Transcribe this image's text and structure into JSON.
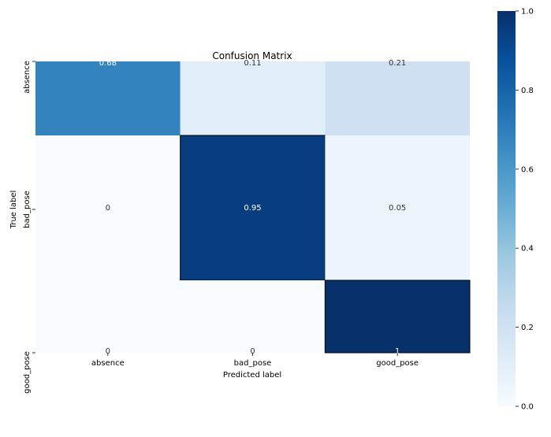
{
  "chart_data": {
    "type": "heatmap",
    "title": "Confusion Matrix",
    "xlabel": "Predicted label",
    "ylabel": "True label",
    "x_categories": [
      "absence",
      "bad_pose",
      "good_pose"
    ],
    "y_categories": [
      "absence",
      "bad_pose",
      "good_pose"
    ],
    "values": [
      [
        0.68,
        0.11,
        0.21
      ],
      [
        0,
        0.95,
        0.05
      ],
      [
        0,
        0,
        1
      ]
    ],
    "cell_labels": [
      [
        "0.68",
        "0.11",
        "0.21"
      ],
      [
        "0",
        "0.95",
        "0.05"
      ],
      [
        "0",
        "0",
        "1"
      ]
    ],
    "colormap": "Blues",
    "colorbar": {
      "range": [
        0,
        1
      ],
      "ticks": [
        "0.0",
        "0.2",
        "0.4",
        "0.6",
        "0.8",
        "1.0"
      ]
    },
    "grid": false,
    "legend": "colorbar-right"
  }
}
